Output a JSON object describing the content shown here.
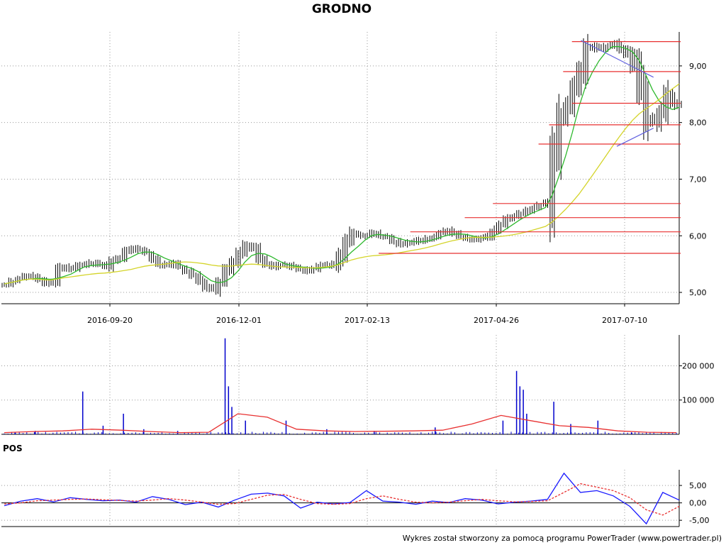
{
  "chart_data": {
    "type": "candlestick",
    "title": "GRODNO",
    "footer": "Wykres został stworzony za pomocą programu PowerTrader (www.powertrader.pl)",
    "price": {
      "y_ticks": [
        "5,00",
        "6,00",
        "7,00",
        "8,00",
        "9,00"
      ],
      "ylim": [
        4.8,
        9.6
      ],
      "x_tick_labels": [
        "2016-09-20",
        "2016-12-01",
        "2017-02-13",
        "2017-04-26",
        "2017-07-10"
      ],
      "grid": true,
      "close_series": [
        5.15,
        5.2,
        5.25,
        5.3,
        5.28,
        5.22,
        5.15,
        5.2,
        5.4,
        5.45,
        5.42,
        5.48,
        5.5,
        5.52,
        5.5,
        5.45,
        5.55,
        5.62,
        5.72,
        5.78,
        5.75,
        5.7,
        5.6,
        5.5,
        5.48,
        5.52,
        5.45,
        5.38,
        5.3,
        5.2,
        5.1,
        5.05,
        5.2,
        5.4,
        5.55,
        5.7,
        5.82,
        5.78,
        5.6,
        5.5,
        5.45,
        5.48,
        5.5,
        5.45,
        5.4,
        5.38,
        5.42,
        5.48,
        5.5,
        5.48,
        5.65,
        5.9,
        6.05,
        6.0,
        6.02,
        6.05,
        6.0,
        5.98,
        5.9,
        5.85,
        5.88,
        5.9,
        5.92,
        5.95,
        5.98,
        6.05,
        6.1,
        6.05,
        5.98,
        5.95,
        5.92,
        5.96,
        6.0,
        6.1,
        6.2,
        6.3,
        6.35,
        6.4,
        6.45,
        6.5,
        6.55,
        6.6,
        7.5,
        8.1,
        8.3,
        8.6,
        8.9,
        9.3,
        9.35,
        9.3,
        9.35,
        9.4,
        9.3,
        9.2,
        9.0,
        8.6,
        8.1,
        8.0,
        8.2,
        8.5,
        8.35,
        8.3
      ],
      "moving_averages": [
        {
          "name": "",
          "color": "#2db82d",
          "period": 5
        },
        {
          "name": "",
          "color": "#d4d42a",
          "period": 20
        }
      ],
      "horizontal_levels": [
        {
          "value": 9.43,
          "x_start": "2017-06-10"
        },
        {
          "value": 8.9,
          "x_start": "2017-06-05"
        },
        {
          "value": 8.34,
          "x_start": "2017-06-10"
        },
        {
          "value": 7.96,
          "x_start": "2017-05-28"
        },
        {
          "value": 7.62,
          "x_start": "2017-05-22"
        },
        {
          "value": 6.57,
          "x_start": "2017-04-26"
        },
        {
          "value": 6.32,
          "x_start": "2017-04-10"
        },
        {
          "value": 6.07,
          "x_start": "2017-03-10"
        },
        {
          "value": 5.69,
          "x_start": "2017-02-20"
        }
      ],
      "trendlines": [
        {
          "from": [
            0.855,
            9.45
          ],
          "to": [
            0.962,
            8.8
          ]
        },
        {
          "from": [
            0.908,
            7.58
          ],
          "to": [
            0.962,
            7.9
          ]
        }
      ]
    },
    "volume": {
      "y_ticks": [
        "100 000",
        "200 000"
      ],
      "ylim": [
        0,
        290000
      ],
      "bars": [
        {
          "x": 0.02,
          "v": 5000
        },
        {
          "x": 0.05,
          "v": 10000
        },
        {
          "x": 0.12,
          "v": 125000
        },
        {
          "x": 0.15,
          "v": 25000
        },
        {
          "x": 0.18,
          "v": 60000
        },
        {
          "x": 0.21,
          "v": 15000
        },
        {
          "x": 0.26,
          "v": 10000
        },
        {
          "x": 0.33,
          "v": 280000
        },
        {
          "x": 0.335,
          "v": 140000
        },
        {
          "x": 0.34,
          "v": 80000
        },
        {
          "x": 0.36,
          "v": 40000
        },
        {
          "x": 0.42,
          "v": 40000
        },
        {
          "x": 0.48,
          "v": 15000
        },
        {
          "x": 0.55,
          "v": 10000
        },
        {
          "x": 0.64,
          "v": 20000
        },
        {
          "x": 0.74,
          "v": 40000
        },
        {
          "x": 0.76,
          "v": 185000
        },
        {
          "x": 0.765,
          "v": 140000
        },
        {
          "x": 0.77,
          "v": 130000
        },
        {
          "x": 0.775,
          "v": 60000
        },
        {
          "x": 0.815,
          "v": 95000
        },
        {
          "x": 0.84,
          "v": 30000
        },
        {
          "x": 0.88,
          "v": 40000
        },
        {
          "x": 0.93,
          "v": 5000
        }
      ],
      "average": [
        5000,
        8000,
        10000,
        15000,
        12000,
        8000,
        5000,
        6000,
        60000,
        50000,
        15000,
        10000,
        8000,
        9000,
        10000,
        12000,
        30000,
        55000,
        40000,
        25000,
        20000,
        10000,
        6000,
        5000
      ],
      "colors": {
        "bars": "#0000cc",
        "average": "#e83030"
      }
    },
    "pos": {
      "label": "POS",
      "y_ticks": [
        "5,00",
        "0,00",
        "-5,00"
      ],
      "ylim": [
        -6.8,
        9.5
      ],
      "series": [
        {
          "name": "",
          "color": "#1a1aff",
          "values": [
            -0.8,
            0.5,
            1.2,
            0.3,
            1.5,
            1.0,
            0.6,
            0.8,
            0.2,
            1.8,
            1.0,
            -0.5,
            0.2,
            -1.2,
            0.8,
            2.5,
            2.8,
            2.0,
            -1.5,
            0.2,
            -0.3,
            0.1,
            3.5,
            0.5,
            0.2,
            -0.4,
            0.5,
            0.1,
            1.2,
            0.8,
            -0.3,
            0.2,
            0.5,
            1.0,
            8.5,
            3.0,
            3.5,
            2.0,
            -1.0,
            -6.0,
            3.0,
            0.8
          ]
        },
        {
          "name": "",
          "color": "#e83030",
          "values": [
            -0.3,
            0.0,
            0.6,
            0.8,
            1.0,
            1.1,
            0.9,
            0.7,
            0.5,
            0.8,
            1.2,
            0.8,
            0.2,
            -0.4,
            -0.2,
            1.0,
            2.2,
            2.4,
            1.0,
            -0.2,
            -0.4,
            -0.2,
            1.2,
            2.0,
            1.0,
            0.2,
            0.0,
            0.2,
            0.6,
            1.0,
            0.6,
            0.3,
            0.4,
            0.6,
            3.0,
            5.5,
            4.5,
            3.5,
            1.5,
            -2.0,
            -3.5,
            -1.0
          ]
        }
      ]
    }
  }
}
